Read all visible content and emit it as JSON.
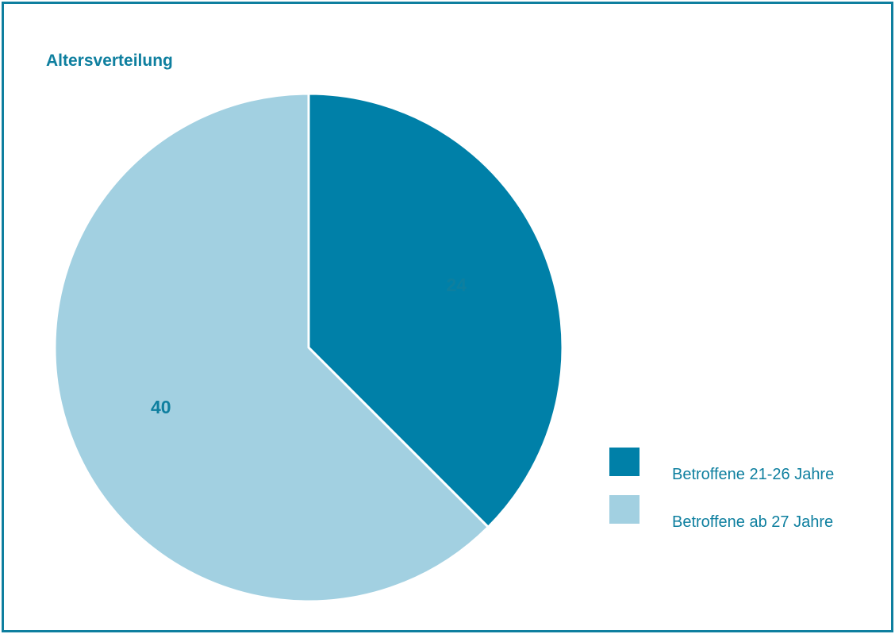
{
  "chart_data": {
    "type": "pie",
    "title": "Altersverteilung",
    "categories": [
      "Betroffene 21-26 Jahre",
      "Betroffene ab 27 Jahre"
    ],
    "values": [
      24,
      40
    ],
    "data_labels": [
      "24",
      "40"
    ],
    "colors": [
      "#0080a8",
      "#a2d0e1"
    ],
    "legend": {
      "position": "right",
      "entries": [
        "Betroffene 21-26 Jahre",
        "Betroffene ab 27 Jahre"
      ]
    }
  },
  "colors": {
    "frame": "#0e7f9f",
    "text": "#0e7f9f",
    "slice_separator": "#ffffff"
  }
}
